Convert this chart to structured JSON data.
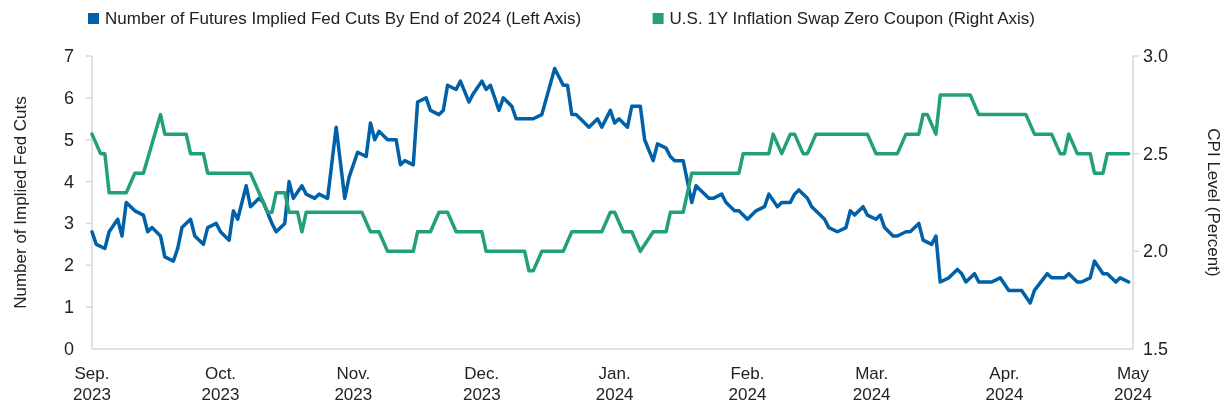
{
  "chart_data": {
    "type": "line",
    "xlim": [
      "2023-09-01",
      "2024-05-01"
    ],
    "xticks": [
      {
        "value": "2023-09-01",
        "label": "Sep. 2023"
      },
      {
        "value": "2023-10-01",
        "label": "Oct. 2023"
      },
      {
        "value": "2023-11-01",
        "label": "Nov. 2023"
      },
      {
        "value": "2023-12-01",
        "label": "Dec. 2023"
      },
      {
        "value": "2024-01-01",
        "label": "Jan. 2024"
      },
      {
        "value": "2024-02-01",
        "label": "Feb. 2024"
      },
      {
        "value": "2024-03-01",
        "label": "Mar. 2024"
      },
      {
        "value": "2024-04-01",
        "label": "Apr. 2024"
      },
      {
        "value": "2024-05-01",
        "label": "May 2024"
      }
    ],
    "ylabel": "Number of Implied Fed Cuts",
    "y2label": "CPI Level (Percent)",
    "ylim": [
      0,
      7
    ],
    "yticks": [
      0,
      1,
      2,
      3,
      4,
      5,
      6,
      7
    ],
    "y2lim": [
      1.5,
      3.0
    ],
    "y2ticks": [
      {
        "value": 1.5,
        "label": "1.5"
      },
      {
        "value": 2.0,
        "label": "2.0"
      },
      {
        "value": 2.5,
        "label": "2.5"
      },
      {
        "value": 3.0,
        "label": "3.0"
      }
    ],
    "grid": false,
    "legend": "top",
    "marker": "none",
    "line_style": "solid",
    "series": [
      {
        "name": "Number of Futures Implied Fed Cuts By End of 2024 (Left Axis)",
        "color": "#0061a8",
        "axis": "y",
        "x": [
          "2023-09-01",
          "2023-09-02",
          "2023-09-04",
          "2023-09-05",
          "2023-09-07",
          "2023-09-08",
          "2023-09-09",
          "2023-09-11",
          "2023-09-13",
          "2023-09-14",
          "2023-09-15",
          "2023-09-17",
          "2023-09-18",
          "2023-09-20",
          "2023-09-21",
          "2023-09-22",
          "2023-09-24",
          "2023-09-25",
          "2023-09-27",
          "2023-09-28",
          "2023-09-30",
          "2023-10-01",
          "2023-10-03",
          "2023-10-04",
          "2023-10-05",
          "2023-10-07",
          "2023-10-08",
          "2023-10-10",
          "2023-10-11",
          "2023-10-13",
          "2023-10-14",
          "2023-10-16",
          "2023-10-17",
          "2023-10-18",
          "2023-10-20",
          "2023-10-21",
          "2023-10-23",
          "2023-10-24",
          "2023-10-26",
          "2023-10-28",
          "2023-10-30",
          "2023-10-31",
          "2023-11-02",
          "2023-11-04",
          "2023-11-05",
          "2023-11-06",
          "2023-11-07",
          "2023-11-09",
          "2023-11-11",
          "2023-11-12",
          "2023-11-13",
          "2023-11-15",
          "2023-11-16",
          "2023-11-18",
          "2023-11-19",
          "2023-11-21",
          "2023-11-22",
          "2023-11-23",
          "2023-11-25",
          "2023-11-26",
          "2023-11-28",
          "2023-11-29",
          "2023-12-01",
          "2023-12-02",
          "2023-12-03",
          "2023-12-05",
          "2023-12-06",
          "2023-12-08",
          "2023-12-09",
          "2023-12-11",
          "2023-12-13",
          "2023-12-15",
          "2023-12-18",
          "2023-12-20",
          "2023-12-21",
          "2023-12-22",
          "2023-12-23",
          "2023-12-25",
          "2023-12-26",
          "2023-12-28",
          "2023-12-29",
          "2023-12-31",
          "2024-01-01",
          "2024-01-02",
          "2024-01-04",
          "2024-01-05",
          "2024-01-07",
          "2024-01-08",
          "2024-01-10",
          "2024-01-11",
          "2024-01-13",
          "2024-01-14",
          "2024-01-15",
          "2024-01-17",
          "2024-01-19",
          "2024-01-20",
          "2024-01-21",
          "2024-01-23",
          "2024-01-24",
          "2024-01-26",
          "2024-01-27",
          "2024-01-29",
          "2024-01-30",
          "2024-02-01",
          "2024-02-03",
          "2024-02-05",
          "2024-02-06",
          "2024-02-08",
          "2024-02-09",
          "2024-02-11",
          "2024-02-12",
          "2024-02-13",
          "2024-02-15",
          "2024-02-16",
          "2024-02-18",
          "2024-02-19",
          "2024-02-20",
          "2024-02-22",
          "2024-02-24",
          "2024-02-25",
          "2024-02-26",
          "2024-02-28",
          "2024-02-29",
          "2024-03-02",
          "2024-03-03",
          "2024-03-04",
          "2024-03-06",
          "2024-03-07",
          "2024-03-09",
          "2024-03-10",
          "2024-03-12",
          "2024-03-13",
          "2024-03-15",
          "2024-03-16",
          "2024-03-17",
          "2024-03-19",
          "2024-03-21",
          "2024-03-22",
          "2024-03-23",
          "2024-03-25",
          "2024-03-26",
          "2024-03-28",
          "2024-03-29",
          "2024-03-31",
          "2024-04-02",
          "2024-04-05",
          "2024-04-07",
          "2024-04-08",
          "2024-04-11",
          "2024-04-12",
          "2024-04-15",
          "2024-04-16",
          "2024-04-18",
          "2024-04-19",
          "2024-04-21",
          "2024-04-22",
          "2024-04-24",
          "2024-04-25",
          "2024-04-27",
          "2024-04-28",
          "2024-04-30"
        ],
        "values": [
          2.8,
          2.5,
          2.4,
          2.8,
          3.1,
          2.7,
          3.5,
          3.3,
          3.2,
          2.8,
          2.9,
          2.7,
          2.2,
          2.1,
          2.4,
          2.9,
          3.1,
          2.7,
          2.5,
          2.9,
          3.0,
          2.8,
          2.6,
          3.3,
          3.1,
          3.9,
          3.4,
          3.6,
          3.5,
          3.0,
          2.8,
          3.0,
          4.0,
          3.6,
          3.9,
          3.7,
          3.6,
          3.7,
          3.6,
          5.3,
          3.6,
          4.1,
          4.7,
          4.6,
          5.4,
          5.0,
          5.2,
          5.0,
          5.0,
          4.4,
          4.5,
          4.4,
          5.9,
          6.0,
          5.7,
          5.6,
          5.7,
          6.3,
          6.2,
          6.4,
          5.9,
          6.1,
          6.4,
          6.2,
          6.3,
          5.7,
          6.0,
          5.8,
          5.5,
          5.5,
          5.5,
          5.6,
          6.7,
          6.3,
          6.3,
          5.6,
          5.6,
          5.4,
          5.3,
          5.5,
          5.3,
          5.7,
          5.4,
          5.5,
          5.3,
          5.8,
          5.8,
          5.0,
          4.5,
          4.9,
          4.8,
          4.6,
          4.5,
          4.5,
          3.5,
          3.9,
          3.8,
          3.6,
          3.6,
          3.7,
          3.5,
          3.3,
          3.3,
          3.1,
          3.3,
          3.4,
          3.7,
          3.4,
          3.5,
          3.5,
          3.7,
          3.8,
          3.6,
          3.4,
          3.2,
          3.1,
          2.9,
          2.8,
          2.9,
          3.3,
          3.2,
          3.4,
          3.2,
          3.1,
          3.2,
          2.9,
          2.7,
          2.7,
          2.8,
          2.8,
          3.0,
          2.6,
          2.5,
          2.7,
          1.6,
          1.7,
          1.9,
          1.8,
          1.6,
          1.8,
          1.6,
          1.6,
          1.6,
          1.7,
          1.4,
          1.4,
          1.1,
          1.4,
          1.8,
          1.7,
          1.7,
          1.8,
          1.6,
          1.6,
          1.7,
          2.1,
          1.8,
          1.8,
          1.6,
          1.7,
          1.6
        ]
      },
      {
        "name": "U.S. 1Y Inflation Swap Zero Coupon (Right Axis)",
        "color": "#22a07a",
        "axis": "y2",
        "x": [
          "2023-09-01",
          "2023-09-03",
          "2023-09-04",
          "2023-09-05",
          "2023-09-09",
          "2023-09-11",
          "2023-09-13",
          "2023-09-17",
          "2023-09-18",
          "2023-09-23",
          "2023-09-24",
          "2023-09-27",
          "2023-09-28",
          "2023-10-08",
          "2023-10-12",
          "2023-10-13",
          "2023-10-14",
          "2023-10-16",
          "2023-10-17",
          "2023-10-19",
          "2023-10-20",
          "2023-10-21",
          "2023-11-03",
          "2023-11-05",
          "2023-11-07",
          "2023-11-09",
          "2023-11-15",
          "2023-11-16",
          "2023-11-19",
          "2023-11-21",
          "2023-11-23",
          "2023-11-25",
          "2023-12-01",
          "2023-12-02",
          "2023-12-11",
          "2023-12-12",
          "2023-12-13",
          "2023-12-15",
          "2023-12-20",
          "2023-12-22",
          "2023-12-29",
          "2023-12-31",
          "2024-01-01",
          "2024-01-03",
          "2024-01-05",
          "2024-01-07",
          "2024-01-10",
          "2024-01-13",
          "2024-01-14",
          "2024-01-17",
          "2024-01-19",
          "2024-01-30",
          "2024-01-31",
          "2024-02-06",
          "2024-02-07",
          "2024-02-09",
          "2024-02-11",
          "2024-02-12",
          "2024-02-14",
          "2024-02-15",
          "2024-02-17",
          "2024-02-29",
          "2024-03-02",
          "2024-03-07",
          "2024-03-09",
          "2024-03-12",
          "2024-03-13",
          "2024-03-14",
          "2024-03-16",
          "2024-03-17",
          "2024-03-24",
          "2024-03-26",
          "2024-04-06",
          "2024-04-08",
          "2024-04-12",
          "2024-04-14",
          "2024-04-15",
          "2024-04-16",
          "2024-04-18",
          "2024-04-21",
          "2024-04-22",
          "2024-04-24",
          "2024-04-25",
          "2024-04-30"
        ],
        "values": [
          2.6,
          2.5,
          2.5,
          2.3,
          2.3,
          2.4,
          2.4,
          2.7,
          2.6,
          2.6,
          2.5,
          2.5,
          2.4,
          2.4,
          2.2,
          2.2,
          2.3,
          2.3,
          2.2,
          2.2,
          2.1,
          2.2,
          2.2,
          2.1,
          2.1,
          2.0,
          2.0,
          2.1,
          2.1,
          2.2,
          2.2,
          2.1,
          2.1,
          2.0,
          2.0,
          1.9,
          1.9,
          2.0,
          2.0,
          2.1,
          2.1,
          2.2,
          2.2,
          2.1,
          2.1,
          2.0,
          2.1,
          2.1,
          2.2,
          2.2,
          2.4,
          2.4,
          2.5,
          2.5,
          2.6,
          2.5,
          2.6,
          2.6,
          2.5,
          2.5,
          2.6,
          2.6,
          2.5,
          2.5,
          2.6,
          2.6,
          2.7,
          2.7,
          2.6,
          2.8,
          2.8,
          2.7,
          2.7,
          2.6,
          2.6,
          2.5,
          2.5,
          2.6,
          2.5,
          2.5,
          2.4,
          2.4,
          2.5,
          2.5
        ]
      }
    ]
  }
}
